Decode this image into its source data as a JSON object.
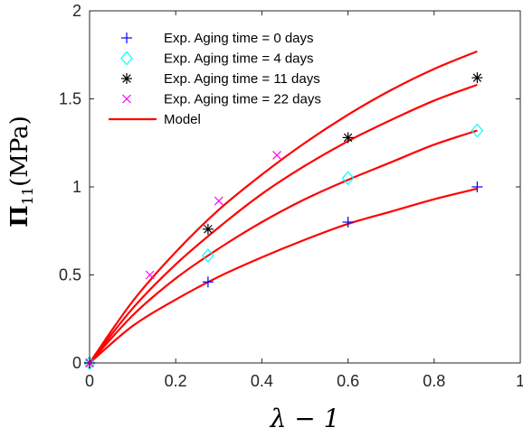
{
  "chart_data": {
    "type": "scatter",
    "xlabel": "λ − 1",
    "ylabel": {
      "symbol": "Π",
      "subscript": "11",
      "unit": "(MPa)"
    },
    "xlim": [
      0,
      1
    ],
    "ylim": [
      0,
      2
    ],
    "xticks": [
      0,
      0.2,
      0.4,
      0.6,
      0.8,
      1
    ],
    "xtick_labels": [
      "0",
      "0.2",
      "0.4",
      "0.6",
      "0.8",
      "1"
    ],
    "yticks": [
      0,
      0.5,
      1,
      1.5,
      2
    ],
    "ytick_labels": [
      "0",
      "0.5",
      "1",
      "1.5",
      "2"
    ],
    "grid": false,
    "legend_position": "top-left",
    "series": [
      {
        "name": "Exp. Aging time = 0 days",
        "marker": "plus",
        "color": "#0000ff",
        "x": [
          0,
          0.275,
          0.6,
          0.9
        ],
        "y": [
          0,
          0.46,
          0.8,
          1.0
        ]
      },
      {
        "name": "Exp. Aging time = 4 days",
        "marker": "diamond",
        "color": "#00ffff",
        "x": [
          0,
          0.275,
          0.6,
          0.9
        ],
        "y": [
          0,
          0.61,
          1.05,
          1.32
        ]
      },
      {
        "name": "Exp. Aging time = 11 days",
        "marker": "asterisk",
        "color": "#000000",
        "x": [
          0,
          0.275,
          0.6,
          0.9
        ],
        "y": [
          0,
          0.76,
          1.28,
          1.62
        ]
      },
      {
        "name": "Exp. Aging time = 22 days",
        "marker": "cross",
        "color": "#ff00ff",
        "x": [
          0,
          0.14,
          0.3,
          0.435
        ],
        "y": [
          0,
          0.5,
          0.92,
          1.18
        ]
      }
    ],
    "model": {
      "name": "Model",
      "color": "#ff0000",
      "curves": [
        {
          "x": [
            0,
            0.1,
            0.2,
            0.3,
            0.4,
            0.5,
            0.6,
            0.7,
            0.8,
            0.9
          ],
          "y": [
            0,
            0.21,
            0.36,
            0.49,
            0.6,
            0.7,
            0.79,
            0.86,
            0.93,
            0.99
          ]
        },
        {
          "x": [
            0,
            0.1,
            0.2,
            0.3,
            0.4,
            0.5,
            0.6,
            0.7,
            0.8,
            0.9
          ],
          "y": [
            0,
            0.27,
            0.48,
            0.65,
            0.8,
            0.93,
            1.04,
            1.14,
            1.24,
            1.32
          ]
        },
        {
          "x": [
            0,
            0.1,
            0.2,
            0.3,
            0.4,
            0.5,
            0.6,
            0.7,
            0.8,
            0.9
          ],
          "y": [
            0,
            0.31,
            0.56,
            0.77,
            0.96,
            1.12,
            1.26,
            1.38,
            1.49,
            1.58
          ]
        },
        {
          "x": [
            0,
            0.1,
            0.2,
            0.3,
            0.4,
            0.5,
            0.6,
            0.7,
            0.8,
            0.9
          ],
          "y": [
            0,
            0.35,
            0.63,
            0.87,
            1.07,
            1.25,
            1.41,
            1.55,
            1.67,
            1.77
          ]
        }
      ]
    }
  }
}
